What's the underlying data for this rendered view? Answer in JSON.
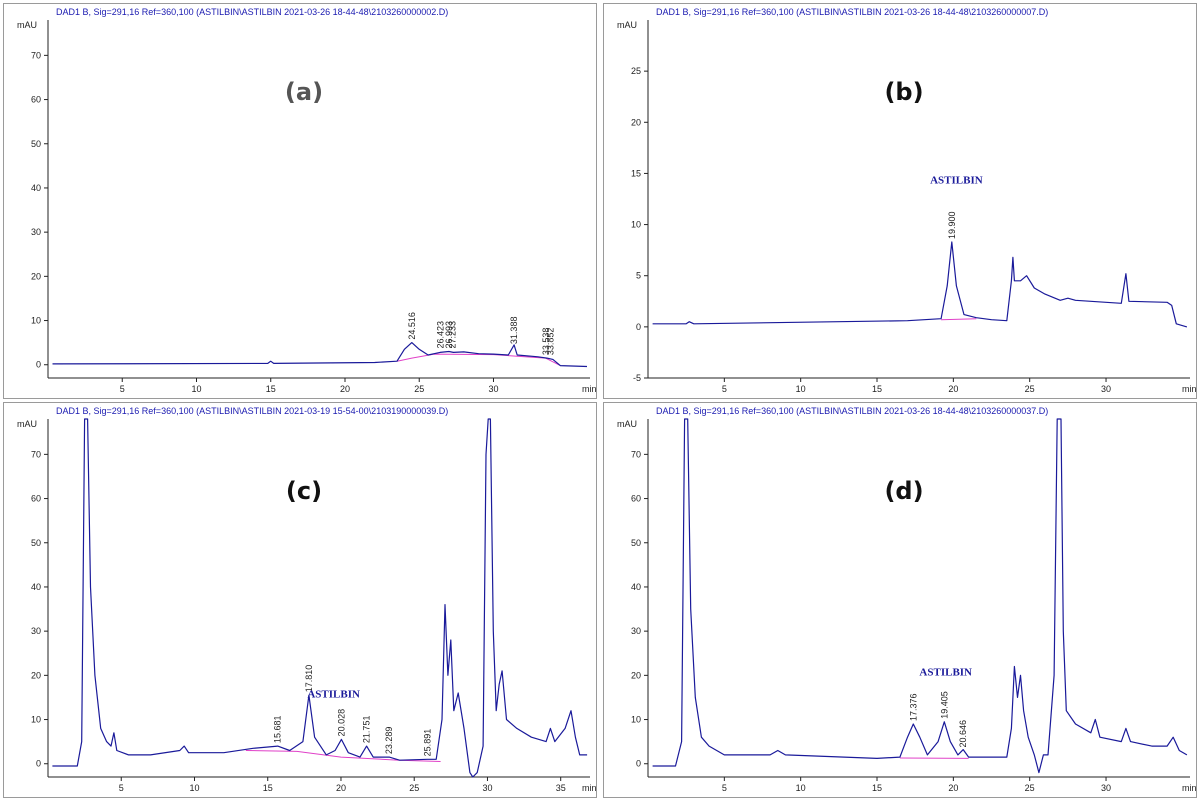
{
  "colors": {
    "trace": "#1a1a9a",
    "baseline": "#e040c8",
    "axis": "#222222",
    "header": "#1a1ab0",
    "border": "#9a9a9a"
  },
  "chart_data": [
    {
      "type": "line",
      "panel_label": "(a)",
      "label_color": "#555555",
      "header": "DAD1 B, Sig=291,16 Ref=360,100 (ASTILBIN\\ASTILBIN 2021-03-26 18-44-48\\2103260000002.D)",
      "ylabel": "mAU",
      "xlabel": "min",
      "xlim": [
        0,
        36.5
      ],
      "ylim": [
        -3,
        78
      ],
      "xticks": [
        "5",
        "10",
        "15",
        "20",
        "25",
        "30"
      ],
      "xtick_values": [
        5,
        10,
        15,
        20,
        25,
        30
      ],
      "yticks": [
        "0",
        "10",
        "20",
        "30",
        "40",
        "50",
        "60",
        "70"
      ],
      "ytick_values": [
        0,
        10,
        20,
        30,
        40,
        50,
        60,
        70
      ],
      "compound_label": "",
      "peak_labels": [
        {
          "text": "24.516",
          "x": 24.516,
          "y": 5
        },
        {
          "text": "26.423",
          "x": 26.423,
          "y": 3
        },
        {
          "text": "26.993",
          "x": 26.993,
          "y": 3
        },
        {
          "text": "27.233",
          "x": 27.233,
          "y": 3
        },
        {
          "text": "31.388",
          "x": 31.388,
          "y": 4
        },
        {
          "text": "33.538",
          "x": 33.538,
          "y": 1.5
        },
        {
          "text": "33.852",
          "x": 33.852,
          "y": 1.5
        }
      ],
      "trace": [
        [
          0.3,
          0.2
        ],
        [
          14.8,
          0.3
        ],
        [
          15,
          0.8
        ],
        [
          15.2,
          0.3
        ],
        [
          22,
          0.5
        ],
        [
          23.5,
          0.8
        ],
        [
          24,
          3.5
        ],
        [
          24.5,
          5
        ],
        [
          25,
          3.5
        ],
        [
          25.6,
          2.2
        ],
        [
          26.4,
          2.8
        ],
        [
          27,
          3
        ],
        [
          27.3,
          2.8
        ],
        [
          28,
          2.9
        ],
        [
          29,
          2.5
        ],
        [
          30,
          2.4
        ],
        [
          31,
          2.2
        ],
        [
          31.388,
          4.5
        ],
        [
          31.6,
          2.2
        ],
        [
          33,
          1.8
        ],
        [
          33.6,
          1.5
        ],
        [
          34,
          1.2
        ],
        [
          34.5,
          -0.2
        ],
        [
          36.3,
          -0.4
        ]
      ],
      "baseline": [
        [
          23.5,
          0.8
        ],
        [
          24.5,
          1.5
        ],
        [
          26,
          2.4
        ],
        [
          30,
          2.3
        ],
        [
          33.5,
          1.5
        ],
        [
          34.5,
          -0.2
        ]
      ]
    },
    {
      "type": "line",
      "panel_label": "(b)",
      "label_color": "#111111",
      "header": "DAD1 B, Sig=291,16 Ref=360,100 (ASTILBIN\\ASTILBIN 2021-03-26 18-44-48\\2103260000007.D)",
      "ylabel": "mAU",
      "xlabel": "min",
      "xlim": [
        0,
        35.5
      ],
      "ylim": [
        -5,
        30
      ],
      "xticks": [
        "5",
        "10",
        "15",
        "20",
        "25",
        "30"
      ],
      "xtick_values": [
        5,
        10,
        15,
        20,
        25,
        30
      ],
      "yticks": [
        "-5",
        "0",
        "5",
        "10",
        "15",
        "20",
        "25"
      ],
      "ytick_values": [
        -5,
        0,
        5,
        10,
        15,
        20,
        25
      ],
      "compound_label": "ASTILBIN",
      "compound_pos": [
        20.2,
        14
      ],
      "peak_labels": [
        {
          "text": "19.900",
          "x": 19.9,
          "y": 8.3
        }
      ],
      "trace": [
        [
          0.3,
          0.3
        ],
        [
          2.5,
          0.3
        ],
        [
          2.7,
          0.5
        ],
        [
          3,
          0.3
        ],
        [
          17,
          0.6
        ],
        [
          19.2,
          0.8
        ],
        [
          19.6,
          4
        ],
        [
          19.9,
          8.3
        ],
        [
          20.2,
          4
        ],
        [
          20.7,
          1.2
        ],
        [
          21.5,
          0.9
        ],
        [
          22.5,
          0.7
        ],
        [
          23.5,
          0.6
        ],
        [
          23.8,
          4.5
        ],
        [
          23.9,
          6.8
        ],
        [
          24,
          4.5
        ],
        [
          24.4,
          4.5
        ],
        [
          24.8,
          5
        ],
        [
          25.3,
          3.8
        ],
        [
          26,
          3.2
        ],
        [
          27,
          2.6
        ],
        [
          27.5,
          2.8
        ],
        [
          28,
          2.6
        ],
        [
          29,
          2.5
        ],
        [
          30,
          2.4
        ],
        [
          31,
          2.3
        ],
        [
          31.3,
          5.2
        ],
        [
          31.5,
          2.5
        ],
        [
          34,
          2.4
        ],
        [
          34.3,
          2.1
        ],
        [
          34.6,
          0.3
        ],
        [
          35.3,
          0
        ]
      ],
      "baseline": [
        [
          19.2,
          0.7
        ],
        [
          21.5,
          0.8
        ]
      ]
    },
    {
      "type": "line",
      "panel_label": "(c)",
      "label_color": "#111111",
      "header": "DAD1 B, Sig=291,16 Ref=360,100 (ASTILBIN\\ASTILBIN 2021-03-19 15-54-00\\2103190000039.D)",
      "ylabel": "mAU",
      "xlabel": "min",
      "xlim": [
        0,
        37
      ],
      "ylim": [
        -3,
        78
      ],
      "xticks": [
        "5",
        "10",
        "15",
        "20",
        "25",
        "30",
        "35"
      ],
      "xtick_values": [
        5,
        10,
        15,
        20,
        25,
        30,
        35
      ],
      "yticks": [
        "0",
        "10",
        "20",
        "30",
        "40",
        "50",
        "60",
        "70"
      ],
      "ytick_values": [
        0,
        10,
        20,
        30,
        40,
        50,
        60,
        70
      ],
      "compound_label": "ASTILBIN",
      "compound_pos": [
        19.5,
        15
      ],
      "peak_labels": [
        {
          "text": "15.681",
          "x": 15.681,
          "y": 4
        },
        {
          "text": "17.810",
          "x": 17.81,
          "y": 15.5
        },
        {
          "text": "20.028",
          "x": 20.028,
          "y": 5.5
        },
        {
          "text": "21.751",
          "x": 21.751,
          "y": 4
        },
        {
          "text": "23.289",
          "x": 23.289,
          "y": 1.5
        },
        {
          "text": "25.891",
          "x": 25.891,
          "y": 1
        }
      ],
      "trace": [
        [
          0.3,
          -0.5
        ],
        [
          2,
          -0.5
        ],
        [
          2.3,
          5
        ],
        [
          2.5,
          78
        ],
        [
          2.7,
          78
        ],
        [
          2.9,
          40
        ],
        [
          3.2,
          20
        ],
        [
          3.6,
          8
        ],
        [
          4,
          5
        ],
        [
          4.3,
          4
        ],
        [
          4.5,
          7
        ],
        [
          4.7,
          3
        ],
        [
          5.5,
          2
        ],
        [
          7,
          2
        ],
        [
          9,
          3
        ],
        [
          9.3,
          4
        ],
        [
          9.6,
          2.5
        ],
        [
          12,
          2.5
        ],
        [
          14,
          3.5
        ],
        [
          15.681,
          4
        ],
        [
          16.5,
          3
        ],
        [
          17.4,
          5
        ],
        [
          17.81,
          15.5
        ],
        [
          18.2,
          6
        ],
        [
          19,
          2
        ],
        [
          19.6,
          3
        ],
        [
          20.028,
          5.5
        ],
        [
          20.5,
          2.5
        ],
        [
          21.3,
          1.5
        ],
        [
          21.751,
          4
        ],
        [
          22.2,
          1.5
        ],
        [
          23.289,
          1.5
        ],
        [
          24,
          0.8
        ],
        [
          25.891,
          1
        ],
        [
          26.5,
          1
        ],
        [
          26.9,
          10
        ],
        [
          27.1,
          36
        ],
        [
          27.3,
          20
        ],
        [
          27.5,
          28
        ],
        [
          27.7,
          12
        ],
        [
          28,
          16
        ],
        [
          28.4,
          8
        ],
        [
          28.8,
          -2
        ],
        [
          29,
          -3
        ],
        [
          29.3,
          -2
        ],
        [
          29.7,
          4
        ],
        [
          29.9,
          70
        ],
        [
          30.05,
          78
        ],
        [
          30.2,
          78
        ],
        [
          30.4,
          30
        ],
        [
          30.6,
          12
        ],
        [
          30.8,
          18
        ],
        [
          31,
          21
        ],
        [
          31.3,
          10
        ],
        [
          32,
          8
        ],
        [
          33,
          6
        ],
        [
          34,
          5
        ],
        [
          34.3,
          8
        ],
        [
          34.6,
          5
        ],
        [
          35.3,
          8
        ],
        [
          35.7,
          12
        ],
        [
          36,
          6
        ],
        [
          36.3,
          2
        ],
        [
          36.8,
          2
        ]
      ],
      "baseline": [
        [
          13.5,
          3
        ],
        [
          17,
          2.8
        ],
        [
          20,
          1.5
        ],
        [
          24,
          0.8
        ],
        [
          26.8,
          0.5
        ]
      ]
    },
    {
      "type": "line",
      "panel_label": "(d)",
      "label_color": "#111111",
      "header": "DAD1 B, Sig=291,16 Ref=360,100 (ASTILBIN\\ASTILBIN 2021-03-26 18-44-48\\2103260000037.D)",
      "ylabel": "mAU",
      "xlabel": "min",
      "xlim": [
        0,
        35.5
      ],
      "ylim": [
        -3,
        78
      ],
      "xticks": [
        "5",
        "10",
        "15",
        "20",
        "25",
        "30"
      ],
      "xtick_values": [
        5,
        10,
        15,
        20,
        25,
        30
      ],
      "yticks": [
        "0",
        "10",
        "20",
        "30",
        "40",
        "50",
        "60",
        "70"
      ],
      "ytick_values": [
        0,
        10,
        20,
        30,
        40,
        50,
        60,
        70
      ],
      "compound_label": "ASTILBIN",
      "compound_pos": [
        19.5,
        20
      ],
      "peak_labels": [
        {
          "text": "17.376",
          "x": 17.376,
          "y": 9
        },
        {
          "text": "19.405",
          "x": 19.405,
          "y": 9.5
        },
        {
          "text": "20.646",
          "x": 20.646,
          "y": 3
        }
      ],
      "trace": [
        [
          0.3,
          -0.5
        ],
        [
          1.8,
          -0.5
        ],
        [
          2.2,
          5
        ],
        [
          2.4,
          78
        ],
        [
          2.6,
          78
        ],
        [
          2.8,
          35
        ],
        [
          3.1,
          15
        ],
        [
          3.5,
          6
        ],
        [
          4,
          4
        ],
        [
          4.5,
          3
        ],
        [
          5,
          2
        ],
        [
          8,
          2
        ],
        [
          8.5,
          3
        ],
        [
          9,
          2
        ],
        [
          15,
          1.2
        ],
        [
          16.5,
          1.5
        ],
        [
          17,
          6
        ],
        [
          17.376,
          9
        ],
        [
          17.8,
          6
        ],
        [
          18.3,
          2
        ],
        [
          19,
          5
        ],
        [
          19.405,
          9.5
        ],
        [
          19.8,
          5
        ],
        [
          20.3,
          2
        ],
        [
          20.646,
          3.2
        ],
        [
          21,
          1.5
        ],
        [
          23.5,
          1.5
        ],
        [
          23.8,
          8
        ],
        [
          24,
          22
        ],
        [
          24.2,
          15
        ],
        [
          24.4,
          20
        ],
        [
          24.6,
          12
        ],
        [
          24.9,
          6
        ],
        [
          25.3,
          2
        ],
        [
          25.6,
          -2
        ],
        [
          25.9,
          2
        ],
        [
          26.2,
          2
        ],
        [
          26.6,
          20
        ],
        [
          26.8,
          78
        ],
        [
          27.05,
          78
        ],
        [
          27.2,
          30
        ],
        [
          27.4,
          12
        ],
        [
          28,
          9
        ],
        [
          29,
          7
        ],
        [
          29.3,
          10
        ],
        [
          29.6,
          6
        ],
        [
          31,
          5
        ],
        [
          31.3,
          8
        ],
        [
          31.6,
          5
        ],
        [
          33,
          4
        ],
        [
          34,
          4
        ],
        [
          34.4,
          6
        ],
        [
          34.8,
          3
        ],
        [
          35.3,
          2
        ]
      ],
      "baseline": [
        [
          16.5,
          1.3
        ],
        [
          21,
          1.2
        ]
      ]
    }
  ]
}
